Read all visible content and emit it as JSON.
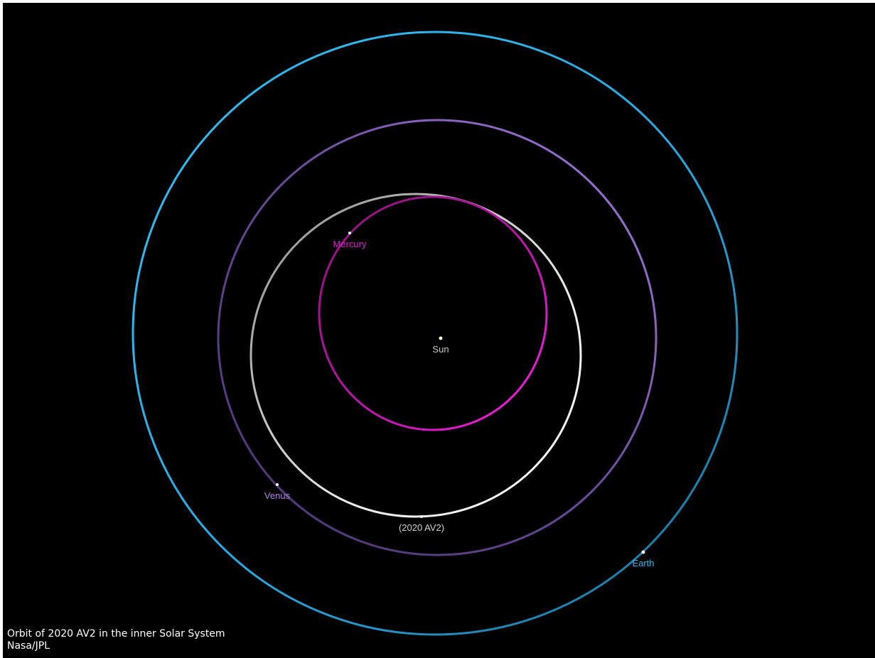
{
  "colors": {
    "background": "#000000",
    "earth_orbit": "#2fb4e8",
    "venus_orbit": "#9b6fcf",
    "asteroid_orbit": "#dcdcdc",
    "mercury_orbit": "#e01ec8",
    "sun": "#fff8c8"
  },
  "bodies": {
    "sun": {
      "label": "Sun",
      "label_color": "#c8c8c8"
    },
    "mercury": {
      "label": "Mercury",
      "label_color": "#e020d0"
    },
    "venus": {
      "label": "Venus",
      "label_color": "#b080e0"
    },
    "asteroid": {
      "label": "(2020 AV2)",
      "label_color": "#d0d0d0"
    },
    "earth": {
      "label": "Earth",
      "label_color": "#30b8e8"
    }
  },
  "caption": {
    "line1": "Orbit of 2020 AV2 in the inner Solar System",
    "line2": "Nasa/JPL"
  }
}
